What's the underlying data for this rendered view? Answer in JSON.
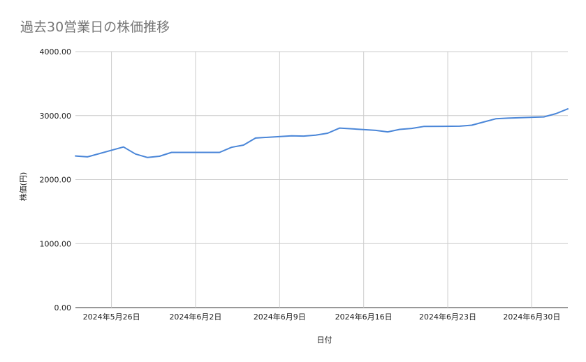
{
  "chart_data": {
    "type": "line",
    "title": "過去30営業日の株価推移",
    "xlabel": "日付",
    "ylabel": "株価(円)",
    "ylim": [
      0,
      4000
    ],
    "yticks": [
      "0.00",
      "1000.00",
      "2000.00",
      "3000.00",
      "4000.00"
    ],
    "xticks": [
      "2024年5月26日",
      "2024年6月2日",
      "2024年6月9日",
      "2024年6月16日",
      "2024年6月23日",
      "2024年6月30日"
    ],
    "grid": true,
    "legend": "none",
    "line_color": "#4a86d8",
    "series": [
      {
        "x": [
          "2024-05-23",
          "2024-05-24",
          "2024-05-27",
          "2024-05-28",
          "2024-05-29",
          "2024-05-30",
          "2024-05-31",
          "2024-06-03",
          "2024-06-04",
          "2024-06-05",
          "2024-06-06",
          "2024-06-07",
          "2024-06-10",
          "2024-06-11",
          "2024-06-12",
          "2024-06-13",
          "2024-06-14",
          "2024-06-17",
          "2024-06-18",
          "2024-06-19",
          "2024-06-20",
          "2024-06-21",
          "2024-06-24",
          "2024-06-25",
          "2024-06-26",
          "2024-06-27",
          "2024-06-28",
          "2024-07-01",
          "2024-07-02",
          "2024-07-03"
        ],
        "values": [
          2370,
          2355,
          2510,
          2400,
          2345,
          2365,
          2425,
          2425,
          2425,
          2505,
          2540,
          2650,
          2685,
          2680,
          2695,
          2725,
          2805,
          2770,
          2745,
          2785,
          2800,
          2830,
          2835,
          2850,
          2900,
          2950,
          2960,
          2980,
          3030,
          3105
        ]
      }
    ]
  }
}
